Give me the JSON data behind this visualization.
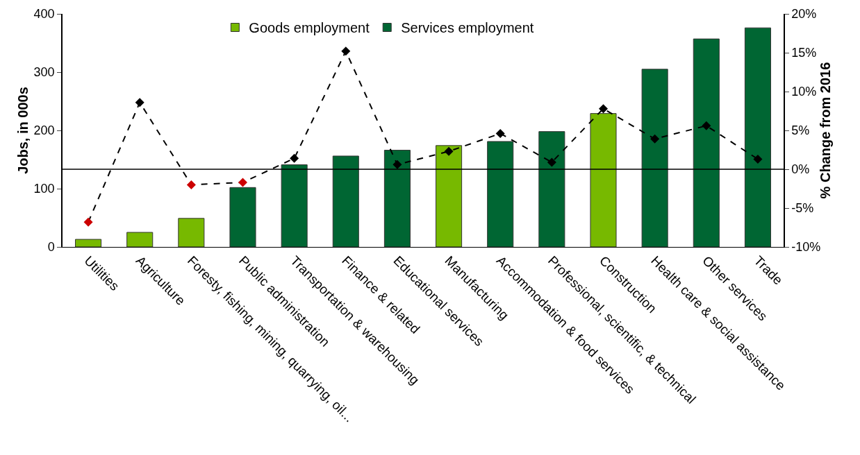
{
  "chart_data": {
    "type": "bar",
    "ylabel": "Jobs, in 000s",
    "y2label": "% Change from 2016",
    "categories": [
      "Utilities",
      "Agriculture",
      "Foresty, fishing, mining, quarrying, oil...",
      "Public administration",
      "Transportation & warehousing",
      "Finance & related",
      "Educational services",
      "Manufacturing",
      "Accommodation & food services",
      "Professional, scientific, & technical",
      "Construction",
      "Health care & social assistance",
      "Other services",
      "Trade"
    ],
    "series": [
      {
        "name": "Goods employment",
        "color": "#77b900",
        "values": [
          13,
          25,
          49,
          null,
          null,
          null,
          null,
          174,
          null,
          null,
          229,
          null,
          null,
          null
        ]
      },
      {
        "name": "Services employment",
        "color": "#006633",
        "values": [
          null,
          null,
          null,
          102,
          141,
          156,
          166,
          null,
          181,
          198,
          null,
          305,
          357,
          376
        ]
      },
      {
        "type": "line",
        "axis": "y2",
        "color": "#000000",
        "line_style": "dashed",
        "marker": "diamond",
        "colors": [
          "#cc0000",
          "#000000",
          "#cc0000",
          "#cc0000",
          "#000000",
          "#000000",
          "#000000",
          "#000000",
          "#000000",
          "#000000",
          "#000000",
          "#000000",
          "#000000",
          "#000000"
        ],
        "values": [
          -6.8,
          8.6,
          -2.0,
          -1.7,
          1.4,
          15.2,
          0.6,
          2.3,
          4.6,
          0.9,
          7.8,
          3.9,
          5.6,
          1.3
        ]
      }
    ],
    "ylim": [
      0,
      400
    ],
    "yticks": [
      0,
      100,
      200,
      300,
      400
    ],
    "y2lim": [
      -10,
      20
    ],
    "y2ticks": [
      {
        "value": -10,
        "label": "-10%"
      },
      {
        "value": -5,
        "label": "-5%"
      },
      {
        "value": 0,
        "label": "0%"
      },
      {
        "value": 5,
        "label": "5%"
      },
      {
        "value": 10,
        "label": "10%"
      },
      {
        "value": 15,
        "label": "15%"
      },
      {
        "value": 20,
        "label": "20%"
      }
    ],
    "ref_lines": [
      {
        "axis": "y2",
        "value": 0,
        "color": "#000000"
      }
    ],
    "grid": false,
    "legend": "top"
  }
}
